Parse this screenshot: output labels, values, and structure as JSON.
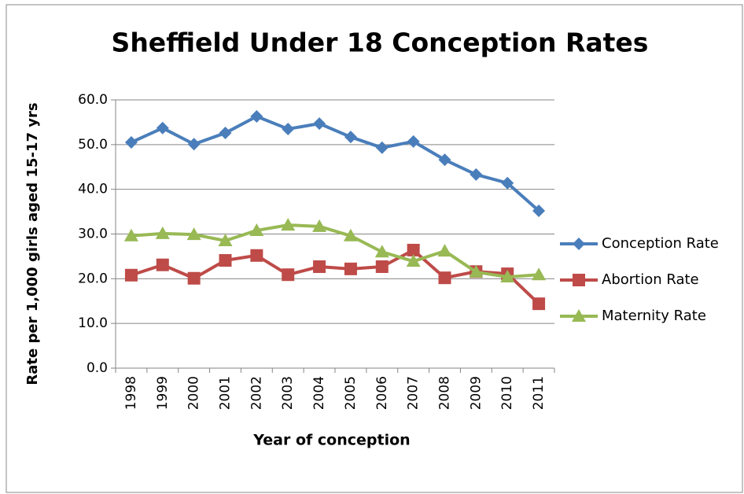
{
  "chart_data": {
    "type": "line",
    "title": "Sheffield Under 18 Conception Rates",
    "x_label": "Year of conception",
    "y_label": "Rate per 1,000 girls aged 15-17 yrs",
    "categories": [
      "1998",
      "1999",
      "2000",
      "2001",
      "2002",
      "2003",
      "2004",
      "2005",
      "2006",
      "2007",
      "2008",
      "2009",
      "2010",
      "2011"
    ],
    "series": [
      {
        "name": "Conception Rate",
        "color": "#4a7ebb",
        "marker": "diamond",
        "values": [
          50.5,
          53.7,
          50.1,
          52.6,
          56.3,
          53.5,
          54.7,
          51.7,
          49.3,
          50.7,
          46.6,
          43.3,
          41.4,
          35.2
        ]
      },
      {
        "name": "Abortion Rate",
        "color": "#be4b48",
        "marker": "square",
        "values": [
          20.8,
          23.1,
          20.1,
          24.1,
          25.2,
          20.9,
          22.7,
          22.2,
          22.7,
          26.4,
          20.2,
          21.6,
          21.1,
          14.4
        ]
      },
      {
        "name": "Maternity Rate",
        "color": "#98b954",
        "marker": "triangle",
        "values": [
          29.6,
          30.1,
          29.9,
          28.5,
          30.8,
          32.0,
          31.7,
          29.6,
          26.0,
          23.9,
          26.2,
          21.5,
          20.4,
          20.9
        ]
      }
    ],
    "ylim": [
      0,
      60
    ],
    "yticks": [
      {
        "value": 0,
        "label": "0.0"
      },
      {
        "value": 10,
        "label": "10.0"
      },
      {
        "value": 20,
        "label": "20.0"
      },
      {
        "value": 30,
        "label": "30.0"
      },
      {
        "value": 40,
        "label": "40.0"
      },
      {
        "value": 50,
        "label": "50.0"
      },
      {
        "value": 60,
        "label": "60.0"
      }
    ],
    "grid": true,
    "legend": "right"
  }
}
